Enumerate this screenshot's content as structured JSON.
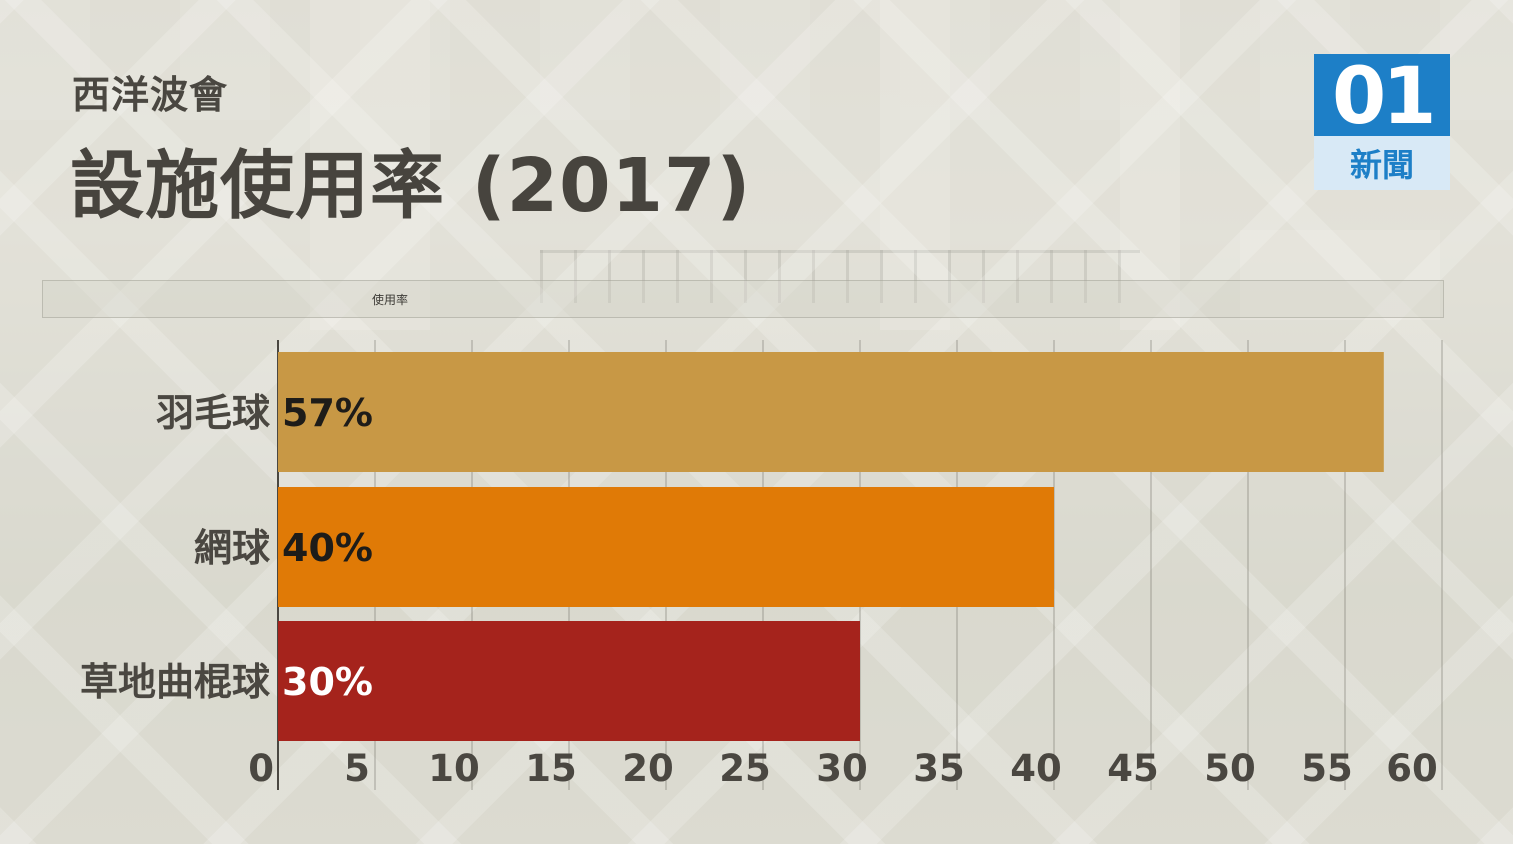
{
  "header": {
    "subtitle": "西洋波會",
    "title": "設施使用率 (2017)"
  },
  "logo": {
    "number": "01",
    "text": "新聞",
    "colors": {
      "primary": "#1d7fc7",
      "light": "#d8e9f6"
    }
  },
  "legend": {
    "label": "使用率"
  },
  "chart_data": {
    "type": "bar",
    "orientation": "horizontal",
    "categories": [
      "羽毛球",
      "網球",
      "草地曲棍球"
    ],
    "values": [
      57,
      40,
      30
    ],
    "value_labels": [
      "57%",
      "40%",
      "30%"
    ],
    "bar_colors": [
      "#c89845",
      "#e07a06",
      "#a5231c"
    ],
    "value_label_colors": [
      "#1e1c19",
      "#1e1c19",
      "#ffffff"
    ],
    "xlim": [
      0,
      60
    ],
    "xticks": [
      0,
      5,
      10,
      15,
      20,
      25,
      30,
      35,
      40,
      45,
      50,
      55,
      60
    ],
    "grid": true,
    "legend": "top",
    "series_name": "使用率"
  }
}
